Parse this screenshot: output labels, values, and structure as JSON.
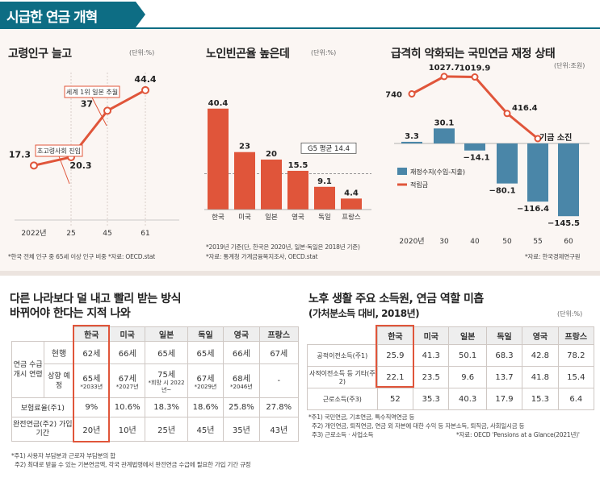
{
  "banner": {
    "title": "시급한 연금 개혁"
  },
  "panel1": {
    "title": "고령인구 늘고",
    "unit": "(단위:%)",
    "note": "*한국 전체 인구 중 65세 이상 인구 비중 *자료: OECD.stat"
  },
  "panel2": {
    "title": "노인빈곤율 높은데",
    "unit": "(단위:%)",
    "note1": "*2019년 기준(단, 한국은 2020년, 일본·독일은 2018년 기준)",
    "note2": "*자료: 통계청 가계금융복지조사, OECD.stat"
  },
  "panel3": {
    "title": "급격히 악화되는 국민연금 재정 상태",
    "unit": "(단위:조원)",
    "note": "*자료: 한국경제연구원"
  },
  "table1": {
    "title1": "다른 나라보다 덜 내고 빨리 받는 방식",
    "title2": "바뀌어야 한다는 지적 나와",
    "countries": [
      "한국",
      "미국",
      "일본",
      "독일",
      "영국",
      "프랑스"
    ],
    "row_group": "연금 수급 개시 연령",
    "row_current": "현행",
    "row_scheduled": "상향 예정",
    "row_rate": "보험료율(주1)",
    "row_period": "완전연금(주2) 가입 기간",
    "current": [
      "62세",
      "66세",
      "65세",
      "65세",
      "66세",
      "67세"
    ],
    "scheduled": [
      "65세",
      "67세",
      "75세",
      "67세",
      "68세",
      "-"
    ],
    "scheduled_note": [
      "*2033년",
      "*2027년",
      "*희망 시 2022년~",
      "*2029년",
      "*2046년",
      ""
    ],
    "rate": [
      "9%",
      "10.6%",
      "18.3%",
      "18.6%",
      "25.8%",
      "27.8%"
    ],
    "period": [
      "20년",
      "10년",
      "25년",
      "45년",
      "35년",
      "43년"
    ],
    "note1": "*주1) 사용자 부담분과 근로자 부담분의 합",
    "note2": "주2) 최대로 받을 수 있는 기본연금액, 각국 관계법령에서 완전연금 수급에 필요한 가입 기간 규정"
  },
  "table2": {
    "title1": "노후 생활 주요 소득원, 연금 역할 미흡",
    "title2": "(가처분소득 대비, 2018년)",
    "unit": "(단위:%)",
    "countries": [
      "한국",
      "미국",
      "일본",
      "독일",
      "영국",
      "프랑스"
    ],
    "rows": [
      {
        "label": "공적이전소득(주1)",
        "values": [
          "25.9",
          "41.3",
          "50.1",
          "68.3",
          "42.8",
          "78.2"
        ]
      },
      {
        "label": "사적이전소득 등 기타(주2)",
        "values": [
          "22.1",
          "23.5",
          "9.6",
          "13.7",
          "41.8",
          "15.4"
        ]
      },
      {
        "label": "근로소득(주3)",
        "values": [
          "52",
          "35.3",
          "40.3",
          "17.9",
          "15.3",
          "6.4"
        ]
      }
    ],
    "note1": "*주1) 국민연금, 기초연금, 특수직역연금 등",
    "note2": "주2) 개인연금, 퇴직연금, 연금 외 자본에 대한 수익 등 자본소득, 퇴직금, 사회일시금 등",
    "note3": "주3) 근로소득 · 사업소득",
    "source": "*자료: OECD 'Pensions at a Glance(2021년)'"
  },
  "chart_data": [
    {
      "type": "line",
      "title": "고령인구 늘고",
      "categories": [
        "2022년",
        "25",
        "45",
        "61"
      ],
      "values": [
        17.3,
        20.3,
        37,
        44.4
      ],
      "annotations": [
        {
          "x": "25",
          "text": "초고령사회 진입"
        },
        {
          "x": "45",
          "text": "세계 1위 일본 추월"
        }
      ],
      "ylim": [
        0,
        50
      ]
    },
    {
      "type": "bar",
      "title": "노인빈곤율 높은데",
      "categories": [
        "한국",
        "미국",
        "일본",
        "영국",
        "독일",
        "프랑스"
      ],
      "values": [
        40.4,
        23,
        20,
        15.5,
        9.1,
        4.4
      ],
      "reference": {
        "label": "G5 평균 14.4",
        "value": 14.4
      },
      "ylim": [
        0,
        45
      ]
    },
    {
      "type": "bar",
      "title": "급격히 악화되는 국민연금 재정 상태",
      "categories": [
        "2020년",
        "30",
        "40",
        "50",
        "55",
        "60"
      ],
      "series": [
        {
          "name": "재정수지(수입-지출)",
          "type": "bar",
          "values": [
            3.3,
            30.1,
            -14.1,
            -80.1,
            -116.4,
            -145.5
          ]
        },
        {
          "name": "적립금",
          "type": "line",
          "values": [
            740,
            1027.7,
            1019.9,
            416.4,
            0,
            null
          ]
        }
      ],
      "annotations": [
        {
          "x": "55",
          "text": "기금 소진"
        }
      ]
    }
  ]
}
